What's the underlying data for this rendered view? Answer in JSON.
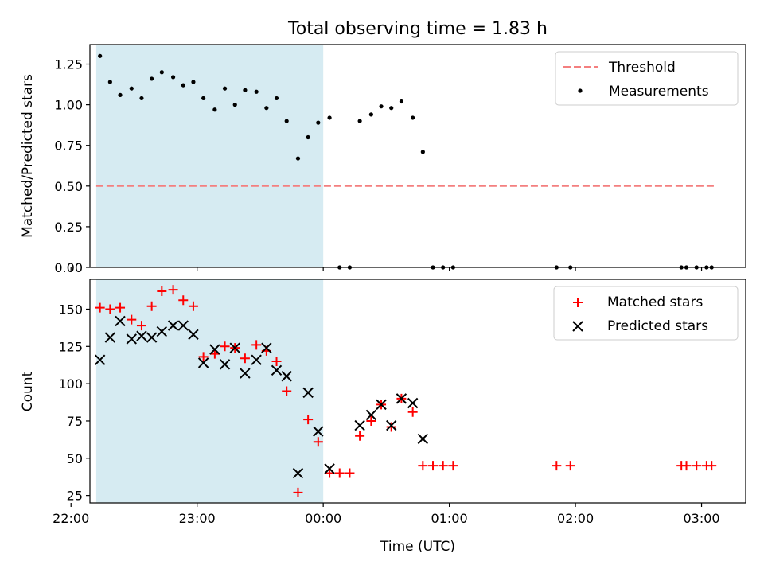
{
  "chart_data": {
    "type": "scatter",
    "title": "Total observing time = 1.83 h",
    "xlabel": "Time (UTC)",
    "x_unit": "hours since 00:00 UTC",
    "x_range": [
      -1.85,
      3.35
    ],
    "x_ticks": [
      -2,
      -1,
      0,
      1,
      2,
      3
    ],
    "x_tick_labels": [
      "22:00",
      "23:00",
      "00:00",
      "01:00",
      "02:00",
      "03:00"
    ],
    "shaded_span": {
      "x": [
        -1.8,
        0.0
      ],
      "color": "#add8e6"
    },
    "panels": [
      {
        "id": "ratio",
        "ylabel": "Matched/Predicted stars",
        "ylim": [
          0,
          1.37
        ],
        "y_ticks": [
          0.0,
          0.25,
          0.5,
          0.75,
          1.0,
          1.25
        ],
        "y_tick_labels": [
          "0.00",
          "0.25",
          "0.50",
          "0.75",
          "1.00",
          "1.25"
        ],
        "legend": [
          "Threshold",
          "Measurements"
        ],
        "legend_position": "top-right",
        "threshold": {
          "name": "Threshold",
          "y": 0.5,
          "x": [
            -1.8,
            3.1
          ],
          "color": "#f47f7f",
          "style": "dashed"
        },
        "series": [
          {
            "name": "Measurements",
            "marker": "dot",
            "color": "#000000",
            "points": [
              [
                -1.77,
                1.3
              ],
              [
                -1.69,
                1.14
              ],
              [
                -1.61,
                1.06
              ],
              [
                -1.52,
                1.1
              ],
              [
                -1.44,
                1.04
              ],
              [
                -1.36,
                1.16
              ],
              [
                -1.28,
                1.2
              ],
              [
                -1.19,
                1.17
              ],
              [
                -1.11,
                1.12
              ],
              [
                -1.03,
                1.14
              ],
              [
                -0.95,
                1.04
              ],
              [
                -0.86,
                0.97
              ],
              [
                -0.78,
                1.1
              ],
              [
                -0.7,
                1.0
              ],
              [
                -0.62,
                1.09
              ],
              [
                -0.53,
                1.08
              ],
              [
                -0.45,
                0.98
              ],
              [
                -0.37,
                1.04
              ],
              [
                -0.29,
                0.9
              ],
              [
                -0.2,
                0.67
              ],
              [
                -0.12,
                0.8
              ],
              [
                -0.04,
                0.89
              ],
              [
                0.05,
                0.92
              ],
              [
                0.13,
                0.0
              ],
              [
                0.21,
                0.0
              ],
              [
                0.29,
                0.9
              ],
              [
                0.38,
                0.94
              ],
              [
                0.46,
                0.99
              ],
              [
                0.54,
                0.98
              ],
              [
                0.62,
                1.02
              ],
              [
                0.71,
                0.92
              ],
              [
                0.79,
                0.71
              ],
              [
                0.87,
                0.0
              ],
              [
                0.95,
                0.0
              ],
              [
                1.03,
                0.0
              ],
              [
                1.85,
                0.0
              ],
              [
                1.96,
                0.0
              ],
              [
                2.84,
                0.0
              ],
              [
                2.88,
                0.0
              ],
              [
                2.96,
                0.0
              ],
              [
                3.04,
                0.0
              ],
              [
                3.08,
                0.0
              ]
            ]
          }
        ]
      },
      {
        "id": "counts",
        "ylabel": "Count",
        "ylim": [
          20,
          170
        ],
        "y_ticks": [
          25,
          50,
          75,
          100,
          125,
          150
        ],
        "y_tick_labels": [
          "25",
          "50",
          "75",
          "100",
          "125",
          "150"
        ],
        "legend": [
          "Matched stars",
          "Predicted stars"
        ],
        "legend_position": "top-right",
        "series": [
          {
            "name": "Matched stars",
            "marker": "plus",
            "color": "#ff0000",
            "points": [
              [
                -1.77,
                151
              ],
              [
                -1.69,
                150
              ],
              [
                -1.61,
                151
              ],
              [
                -1.52,
                143
              ],
              [
                -1.44,
                139
              ],
              [
                -1.36,
                152
              ],
              [
                -1.28,
                162
              ],
              [
                -1.19,
                163
              ],
              [
                -1.11,
                156
              ],
              [
                -1.03,
                152
              ],
              [
                -0.95,
                118
              ],
              [
                -0.86,
                120
              ],
              [
                -0.78,
                125
              ],
              [
                -0.7,
                124
              ],
              [
                -0.62,
                117
              ],
              [
                -0.53,
                126
              ],
              [
                -0.45,
                122
              ],
              [
                -0.37,
                115
              ],
              [
                -0.29,
                95
              ],
              [
                -0.2,
                27
              ],
              [
                -0.12,
                76
              ],
              [
                -0.04,
                61
              ],
              [
                0.05,
                40
              ],
              [
                0.13,
                40
              ],
              [
                0.21,
                40
              ],
              [
                0.29,
                65
              ],
              [
                0.38,
                75
              ],
              [
                0.46,
                86
              ],
              [
                0.54,
                71
              ],
              [
                0.62,
                90
              ],
              [
                0.71,
                81
              ],
              [
                0.79,
                45
              ],
              [
                0.87,
                45
              ],
              [
                0.95,
                45
              ],
              [
                1.03,
                45
              ],
              [
                1.85,
                45
              ],
              [
                1.96,
                45
              ],
              [
                2.84,
                45
              ],
              [
                2.88,
                45
              ],
              [
                2.96,
                45
              ],
              [
                3.04,
                45
              ],
              [
                3.08,
                45
              ]
            ]
          },
          {
            "name": "Predicted stars",
            "marker": "x",
            "color": "#000000",
            "points": [
              [
                -1.77,
                116
              ],
              [
                -1.69,
                131
              ],
              [
                -1.61,
                142
              ],
              [
                -1.52,
                130
              ],
              [
                -1.44,
                132
              ],
              [
                -1.36,
                131
              ],
              [
                -1.28,
                135
              ],
              [
                -1.19,
                139
              ],
              [
                -1.11,
                139
              ],
              [
                -1.03,
                133
              ],
              [
                -0.95,
                114
              ],
              [
                -0.86,
                123
              ],
              [
                -0.78,
                113
              ],
              [
                -0.7,
                124
              ],
              [
                -0.62,
                107
              ],
              [
                -0.53,
                116
              ],
              [
                -0.45,
                124
              ],
              [
                -0.37,
                109
              ],
              [
                -0.29,
                105
              ],
              [
                -0.2,
                40
              ],
              [
                -0.12,
                94
              ],
              [
                -0.04,
                68
              ],
              [
                0.05,
                43
              ],
              [
                0.29,
                72
              ],
              [
                0.38,
                79
              ],
              [
                0.46,
                86
              ],
              [
                0.54,
                72
              ],
              [
                0.62,
                90
              ],
              [
                0.71,
                87
              ],
              [
                0.79,
                63
              ]
            ]
          }
        ]
      }
    ]
  }
}
